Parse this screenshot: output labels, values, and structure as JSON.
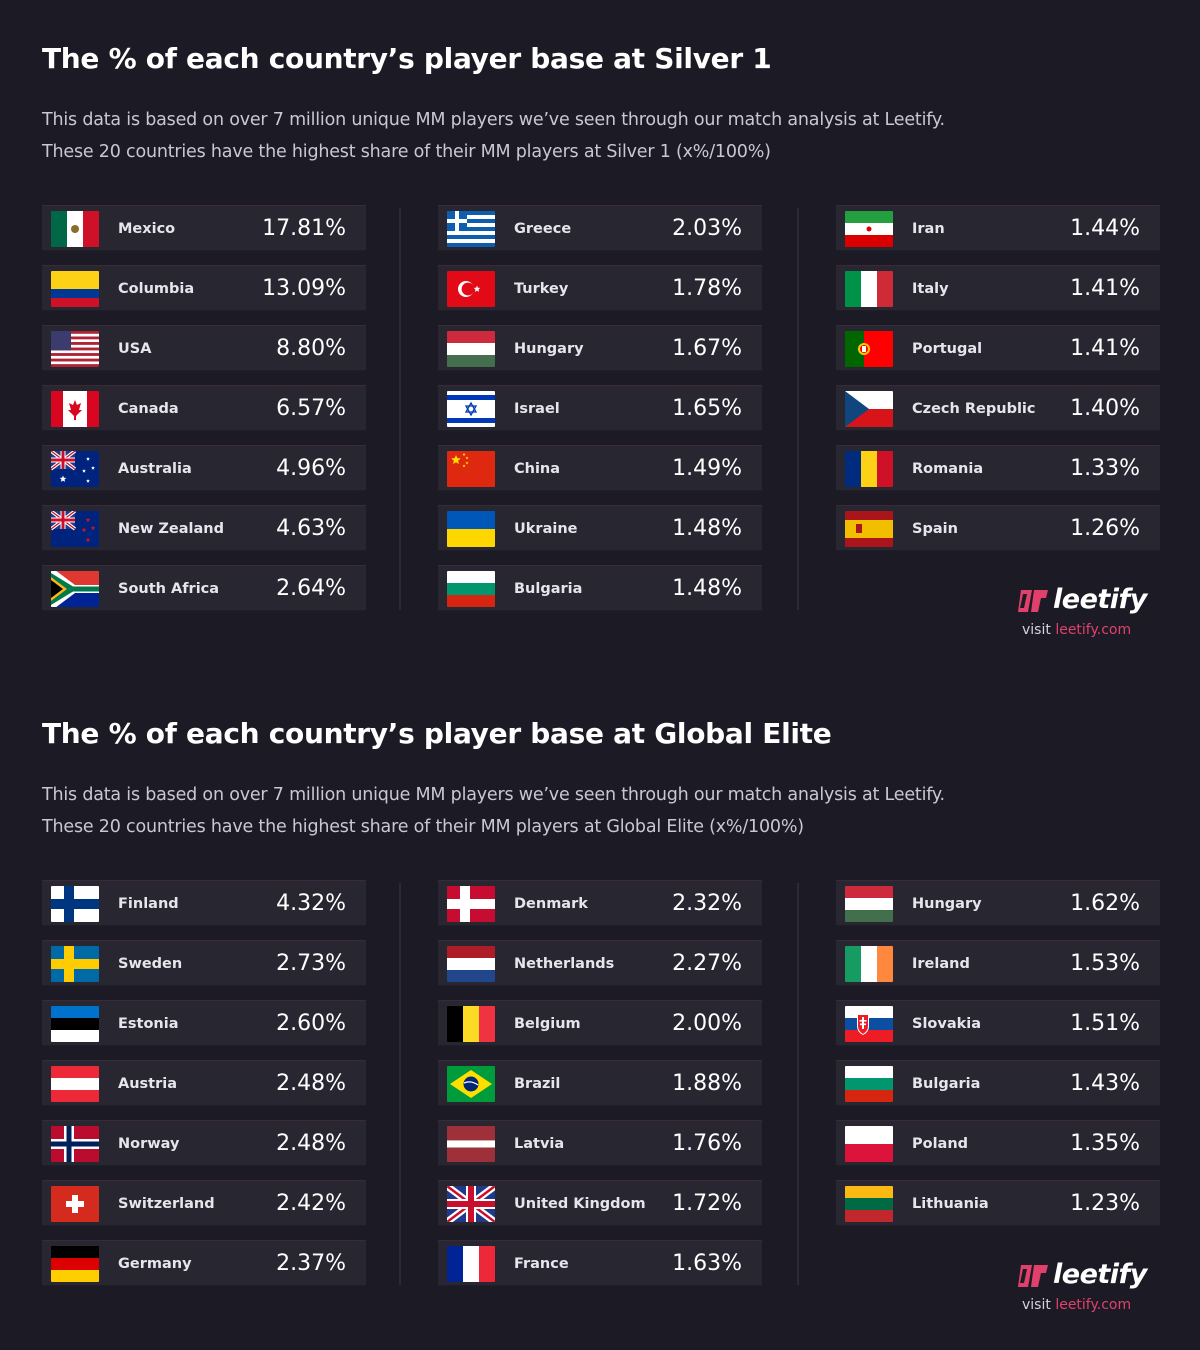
{
  "chart_data": [
    {
      "type": "table",
      "title": "The % of each country’s player base at Silver 1",
      "description": [
        "This data is based on over 7 million unique MM players we’ve seen through our match analysis at Leetify.",
        "These 20 countries have the highest share of their MM players at Silver 1 (x%/100%)"
      ],
      "columns": [
        [
          {
            "country": "Mexico",
            "value": "17.81%",
            "flag": "mexico-flag-icon"
          },
          {
            "country": "Columbia",
            "value": "13.09%",
            "flag": "colombia-flag-icon"
          },
          {
            "country": "USA",
            "value": "8.80%",
            "flag": "usa-flag-icon"
          },
          {
            "country": "Canada",
            "value": "6.57%",
            "flag": "canada-flag-icon"
          },
          {
            "country": "Australia",
            "value": "4.96%",
            "flag": "australia-flag-icon"
          },
          {
            "country": "New Zealand",
            "value": "4.63%",
            "flag": "new-zealand-flag-icon"
          },
          {
            "country": "South Africa",
            "value": "2.64%",
            "flag": "south-africa-flag-icon"
          }
        ],
        [
          {
            "country": "Greece",
            "value": "2.03%",
            "flag": "greece-flag-icon"
          },
          {
            "country": "Turkey",
            "value": "1.78%",
            "flag": "turkey-flag-icon"
          },
          {
            "country": "Hungary",
            "value": "1.67%",
            "flag": "hungary-flag-icon"
          },
          {
            "country": "Israel",
            "value": "1.65%",
            "flag": "israel-flag-icon"
          },
          {
            "country": "China",
            "value": "1.49%",
            "flag": "china-flag-icon"
          },
          {
            "country": "Ukraine",
            "value": "1.48%",
            "flag": "ukraine-flag-icon"
          },
          {
            "country": "Bulgaria",
            "value": "1.48%",
            "flag": "bulgaria-flag-icon"
          }
        ],
        [
          {
            "country": "Iran",
            "value": "1.44%",
            "flag": "iran-flag-icon"
          },
          {
            "country": "Italy",
            "value": "1.41%",
            "flag": "italy-flag-icon"
          },
          {
            "country": "Portugal",
            "value": "1.41%",
            "flag": "portugal-flag-icon"
          },
          {
            "country": "Czech Republic",
            "value": "1.40%",
            "flag": "czech-flag-icon"
          },
          {
            "country": "Romania",
            "value": "1.33%",
            "flag": "romania-flag-icon"
          },
          {
            "country": "Spain",
            "value": "1.26%",
            "flag": "spain-flag-icon"
          }
        ]
      ]
    },
    {
      "type": "table",
      "title": "The % of each country’s player base at Global Elite",
      "description": [
        "This data is based on over 7 million unique MM players we’ve seen through our match analysis at Leetify.",
        "These 20 countries have the highest share of their MM players at Global Elite (x%/100%)"
      ],
      "columns": [
        [
          {
            "country": "Finland",
            "value": "4.32%",
            "flag": "finland-flag-icon"
          },
          {
            "country": "Sweden",
            "value": "2.73%",
            "flag": "sweden-flag-icon"
          },
          {
            "country": "Estonia",
            "value": "2.60%",
            "flag": "estonia-flag-icon"
          },
          {
            "country": "Austria",
            "value": "2.48%",
            "flag": "austria-flag-icon"
          },
          {
            "country": "Norway",
            "value": "2.48%",
            "flag": "norway-flag-icon"
          },
          {
            "country": "Switzerland",
            "value": "2.42%",
            "flag": "switzerland-flag-icon"
          },
          {
            "country": "Germany",
            "value": "2.37%",
            "flag": "germany-flag-icon"
          }
        ],
        [
          {
            "country": "Denmark",
            "value": "2.32%",
            "flag": "denmark-flag-icon"
          },
          {
            "country": "Netherlands",
            "value": "2.27%",
            "flag": "netherlands-flag-icon"
          },
          {
            "country": "Belgium",
            "value": "2.00%",
            "flag": "belgium-flag-icon"
          },
          {
            "country": "Brazil",
            "value": "1.88%",
            "flag": "brazil-flag-icon"
          },
          {
            "country": "Latvia",
            "value": "1.76%",
            "flag": "latvia-flag-icon"
          },
          {
            "country": "United Kingdom",
            "value": "1.72%",
            "flag": "uk-flag-icon"
          },
          {
            "country": "France",
            "value": "1.63%",
            "flag": "france-flag-icon"
          }
        ],
        [
          {
            "country": "Hungary",
            "value": "1.62%",
            "flag": "hungary-flag-icon"
          },
          {
            "country": "Ireland",
            "value": "1.53%",
            "flag": "ireland-flag-icon"
          },
          {
            "country": "Slovakia",
            "value": "1.51%",
            "flag": "slovakia-flag-icon"
          },
          {
            "country": "Bulgaria",
            "value": "1.43%",
            "flag": "bulgaria-flag-icon"
          },
          {
            "country": "Poland",
            "value": "1.35%",
            "flag": "poland-flag-icon"
          },
          {
            "country": "Lithuania",
            "value": "1.23%",
            "flag": "lithuania-flag-icon"
          }
        ]
      ]
    }
  ],
  "branding": {
    "logo_text": "leetify",
    "visit_prefix": "visit ",
    "visit_link": "leetify.com",
    "accent_color": "#e0406b",
    "logo_icon": "leetify-logo-icon"
  },
  "colors": {
    "background": "#1c1b25",
    "row_background": "#282631"
  }
}
